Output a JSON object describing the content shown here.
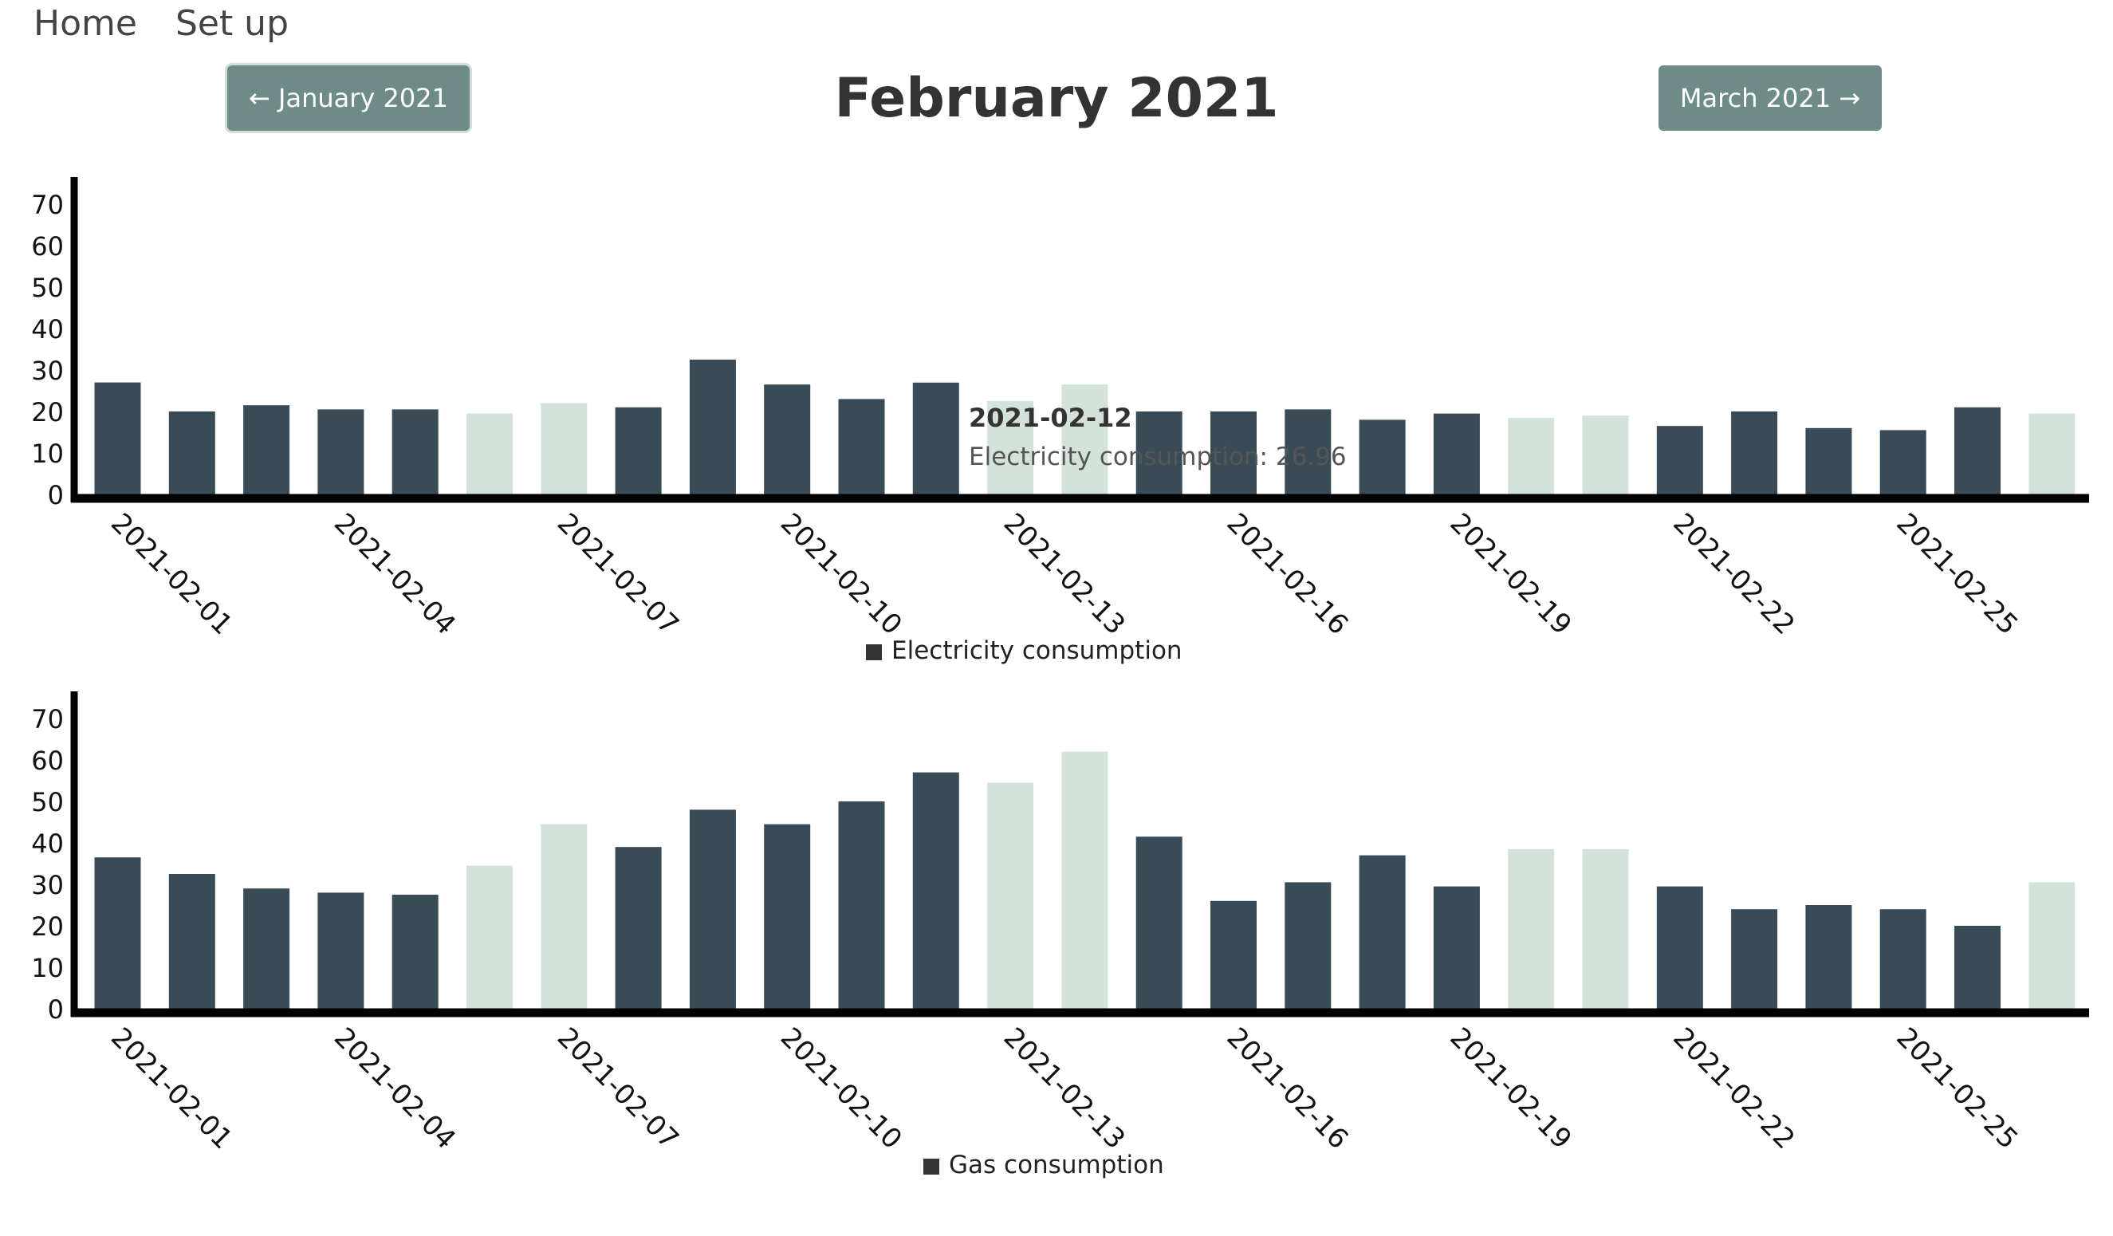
{
  "nav": {
    "home": "Home",
    "setup": "Set up"
  },
  "header": {
    "prev_label": "← January 2021",
    "next_label": "March 2021 →",
    "title": "February 2021"
  },
  "colors": {
    "weekday": "#394b57",
    "weekend": "#d4e3da",
    "button": "#6e8b88",
    "axis": "#000000"
  },
  "tooltip": {
    "date": "2021-02-12",
    "text": "Electricity consumption: 26.96"
  },
  "chart_data": [
    {
      "type": "bar",
      "legend": "Electricity consumption",
      "legend_position": "bottom",
      "ylim": [
        0,
        75
      ],
      "yticks": [
        0,
        10,
        20,
        30,
        40,
        50,
        60,
        70
      ],
      "grid": false,
      "x": [
        "2021-02-01",
        "2021-02-02",
        "2021-02-03",
        "2021-02-04",
        "2021-02-05",
        "2021-02-06",
        "2021-02-07",
        "2021-02-08",
        "2021-02-09",
        "2021-02-10",
        "2021-02-11",
        "2021-02-12",
        "2021-02-13",
        "2021-02-14",
        "2021-02-15",
        "2021-02-16",
        "2021-02-17",
        "2021-02-18",
        "2021-02-19",
        "2021-02-20",
        "2021-02-21",
        "2021-02-22",
        "2021-02-23",
        "2021-02-24",
        "2021-02-25",
        "2021-02-26",
        "2021-02-27"
      ],
      "xtick_labels": [
        "2021-02-01",
        "2021-02-04",
        "2021-02-07",
        "2021-02-10",
        "2021-02-13",
        "2021-02-16",
        "2021-02-19",
        "2021-02-22",
        "2021-02-25"
      ],
      "weekend": [
        false,
        false,
        false,
        false,
        false,
        true,
        true,
        false,
        false,
        false,
        false,
        false,
        true,
        true,
        false,
        false,
        false,
        false,
        false,
        true,
        true,
        false,
        false,
        false,
        false,
        false,
        true
      ],
      "values": [
        27.0,
        20.0,
        21.5,
        20.5,
        20.5,
        19.5,
        22.0,
        21.0,
        32.5,
        26.5,
        23.0,
        26.96,
        22.5,
        26.5,
        20.0,
        20.0,
        20.5,
        18.0,
        19.5,
        18.5,
        19.0,
        16.5,
        20.0,
        16.0,
        15.5,
        21.0,
        19.5
      ]
    },
    {
      "type": "bar",
      "legend": "Gas consumption",
      "legend_position": "bottom",
      "ylim": [
        0,
        75
      ],
      "yticks": [
        0,
        10,
        20,
        30,
        40,
        50,
        60,
        70
      ],
      "grid": false,
      "x": [
        "2021-02-01",
        "2021-02-02",
        "2021-02-03",
        "2021-02-04",
        "2021-02-05",
        "2021-02-06",
        "2021-02-07",
        "2021-02-08",
        "2021-02-09",
        "2021-02-10",
        "2021-02-11",
        "2021-02-12",
        "2021-02-13",
        "2021-02-14",
        "2021-02-15",
        "2021-02-16",
        "2021-02-17",
        "2021-02-18",
        "2021-02-19",
        "2021-02-20",
        "2021-02-21",
        "2021-02-22",
        "2021-02-23",
        "2021-02-24",
        "2021-02-25",
        "2021-02-26",
        "2021-02-27"
      ],
      "xtick_labels": [
        "2021-02-01",
        "2021-02-04",
        "2021-02-07",
        "2021-02-10",
        "2021-02-13",
        "2021-02-16",
        "2021-02-19",
        "2021-02-22",
        "2021-02-25"
      ],
      "weekend": [
        false,
        false,
        false,
        false,
        false,
        true,
        true,
        false,
        false,
        false,
        false,
        false,
        true,
        true,
        false,
        false,
        false,
        false,
        false,
        true,
        true,
        false,
        false,
        false,
        false,
        false,
        true
      ],
      "values": [
        36.5,
        32.5,
        29.0,
        28.0,
        27.5,
        34.5,
        44.5,
        39.0,
        48.0,
        44.5,
        50.0,
        57.0,
        54.5,
        62.0,
        41.5,
        26.0,
        30.5,
        37.0,
        29.5,
        38.5,
        38.5,
        29.5,
        24.0,
        25.0,
        24.0,
        20.0,
        30.5
      ]
    }
  ]
}
